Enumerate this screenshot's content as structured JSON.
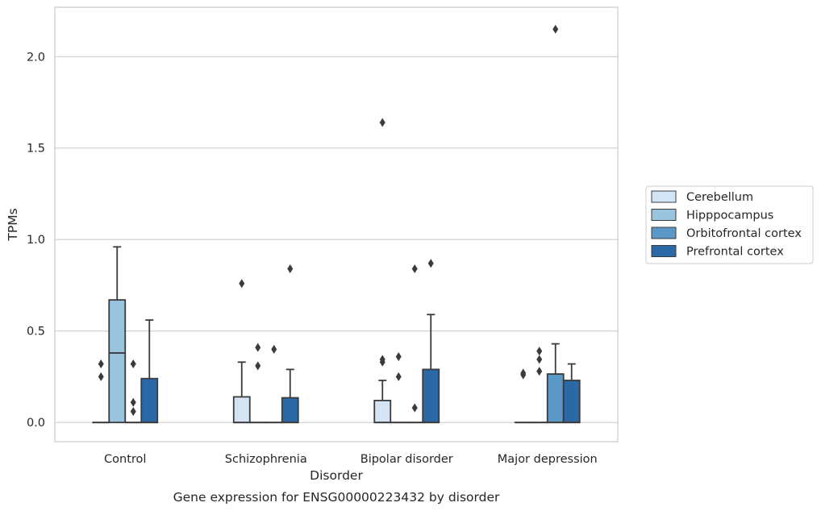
{
  "chart_data": {
    "type": "box",
    "title": "Gene expression for ENSG00000223432 by disorder",
    "xlabel": "Disorder",
    "ylabel": "TPMs",
    "categories": [
      "Control",
      "Schizophrenia",
      "Bipolar disorder",
      "Major depression"
    ],
    "ylim": [
      -0.105,
      2.27
    ],
    "yticks": [
      0.0,
      0.5,
      1.0,
      1.5,
      2.0
    ],
    "ytick_labels": [
      "0.0",
      "0.5",
      "1.0",
      "1.5",
      "2.0"
    ],
    "grid": true,
    "legend_position": "right",
    "series": [
      {
        "name": "Cerebellum",
        "color": "#d4e4f4",
        "boxes": [
          {
            "q1": 0.0,
            "median": 0.0,
            "q3": 0.0,
            "whisker_low": 0.0,
            "whisker_high": 0.0,
            "outliers": [
              0.25,
              0.32
            ]
          },
          {
            "q1": 0.0,
            "median": 0.0,
            "q3": 0.14,
            "whisker_low": 0.0,
            "whisker_high": 0.33,
            "outliers": [
              0.76
            ]
          },
          {
            "q1": 0.0,
            "median": 0.0,
            "q3": 0.12,
            "whisker_low": 0.0,
            "whisker_high": 0.23,
            "outliers": [
              0.33,
              0.345,
              1.64
            ]
          },
          {
            "q1": 0.0,
            "median": 0.0,
            "q3": 0.0,
            "whisker_low": 0.0,
            "whisker_high": 0.0,
            "outliers": [
              0.26,
              0.27
            ]
          }
        ]
      },
      {
        "name": "Hipppocampus",
        "color": "#9ac4de",
        "boxes": [
          {
            "q1": 0.0,
            "median": 0.38,
            "q3": 0.67,
            "whisker_low": 0.0,
            "whisker_high": 0.96,
            "outliers": []
          },
          {
            "q1": 0.0,
            "median": 0.0,
            "q3": 0.0,
            "whisker_low": 0.0,
            "whisker_high": 0.0,
            "outliers": [
              0.31,
              0.41
            ]
          },
          {
            "q1": 0.0,
            "median": 0.0,
            "q3": 0.0,
            "whisker_low": 0.0,
            "whisker_high": 0.0,
            "outliers": [
              0.25,
              0.36
            ]
          },
          {
            "q1": 0.0,
            "median": 0.0,
            "q3": 0.0,
            "whisker_low": 0.0,
            "whisker_high": 0.0,
            "outliers": [
              0.28,
              0.345,
              0.39
            ]
          }
        ]
      },
      {
        "name": "Orbitofrontal cortex",
        "color": "#5a98c8",
        "boxes": [
          {
            "q1": 0.0,
            "median": 0.0,
            "q3": 0.0,
            "whisker_low": 0.0,
            "whisker_high": 0.0,
            "outliers": [
              0.06,
              0.11,
              0.32
            ]
          },
          {
            "q1": 0.0,
            "median": 0.0,
            "q3": 0.0,
            "whisker_low": 0.0,
            "whisker_high": 0.0,
            "outliers": [
              0.4
            ]
          },
          {
            "q1": 0.0,
            "median": 0.0,
            "q3": 0.0,
            "whisker_low": 0.0,
            "whisker_high": 0.0,
            "outliers": [
              0.08,
              0.84
            ]
          },
          {
            "q1": 0.0,
            "median": 0.0,
            "q3": 0.265,
            "whisker_low": 0.0,
            "whisker_high": 0.43,
            "outliers": [
              2.15
            ]
          }
        ]
      },
      {
        "name": "Prefrontal cortex",
        "color": "#2a68a8",
        "boxes": [
          {
            "q1": 0.0,
            "median": 0.0,
            "q3": 0.24,
            "whisker_low": 0.0,
            "whisker_high": 0.56,
            "outliers": []
          },
          {
            "q1": 0.0,
            "median": 0.0,
            "q3": 0.135,
            "whisker_low": 0.0,
            "whisker_high": 0.29,
            "outliers": [
              0.84
            ]
          },
          {
            "q1": 0.0,
            "median": 0.0,
            "q3": 0.29,
            "whisker_low": 0.0,
            "whisker_high": 0.59,
            "outliers": [
              0.87
            ]
          },
          {
            "q1": 0.0,
            "median": 0.0,
            "q3": 0.23,
            "whisker_low": 0.0,
            "whisker_high": 0.32,
            "outliers": []
          }
        ]
      }
    ]
  }
}
